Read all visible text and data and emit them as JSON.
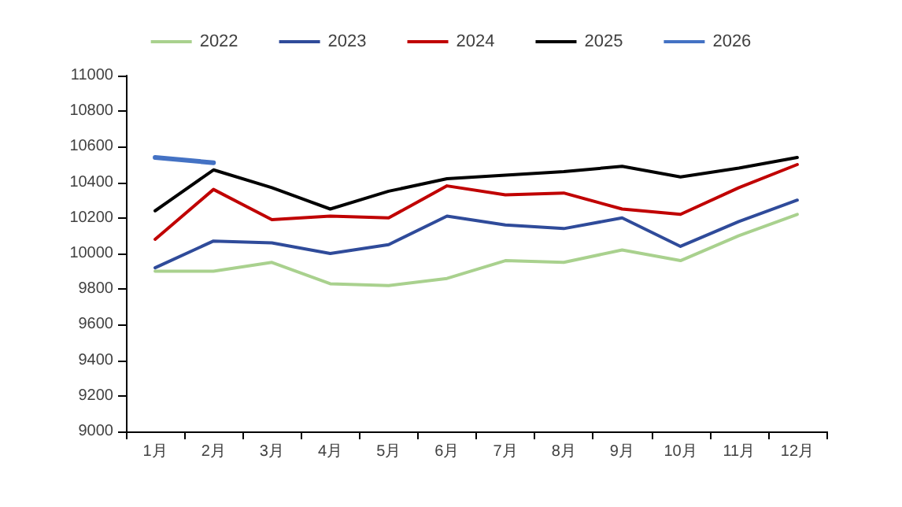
{
  "chart_data": {
    "type": "line",
    "categories": [
      "1月",
      "2月",
      "3月",
      "4月",
      "5月",
      "6月",
      "7月",
      "8月",
      "9月",
      "10月",
      "11月",
      "12月"
    ],
    "series": [
      {
        "name": "2022",
        "color": "#a9d18e",
        "values": [
          9900,
          9900,
          9950,
          9830,
          9820,
          9860,
          9960,
          9950,
          10020,
          9960,
          10100,
          10220
        ]
      },
      {
        "name": "2023",
        "color": "#2f4b9a",
        "values": [
          9920,
          10070,
          10060,
          10000,
          10050,
          10210,
          10160,
          10140,
          10200,
          10040,
          10180,
          10300
        ]
      },
      {
        "name": "2024",
        "color": "#c00000",
        "values": [
          10080,
          10360,
          10190,
          10210,
          10200,
          10380,
          10330,
          10340,
          10250,
          10220,
          10370,
          10500
        ]
      },
      {
        "name": "2025",
        "color": "#000000",
        "values": [
          10240,
          10470,
          10370,
          10250,
          10350,
          10420,
          10440,
          10460,
          10490,
          10430,
          10480,
          10540
        ]
      },
      {
        "name": "2026",
        "color": "#4472c4",
        "values": [
          10540,
          10510,
          null,
          null,
          null,
          null,
          null,
          null,
          null,
          null,
          null,
          null
        ]
      }
    ],
    "ylim": [
      9000,
      11000
    ],
    "yticks": [
      9000,
      9200,
      9400,
      9600,
      9800,
      10000,
      10200,
      10400,
      10600,
      10800,
      11000
    ],
    "grid": false,
    "legend": "top",
    "marker": "none",
    "line_style": "solid"
  }
}
